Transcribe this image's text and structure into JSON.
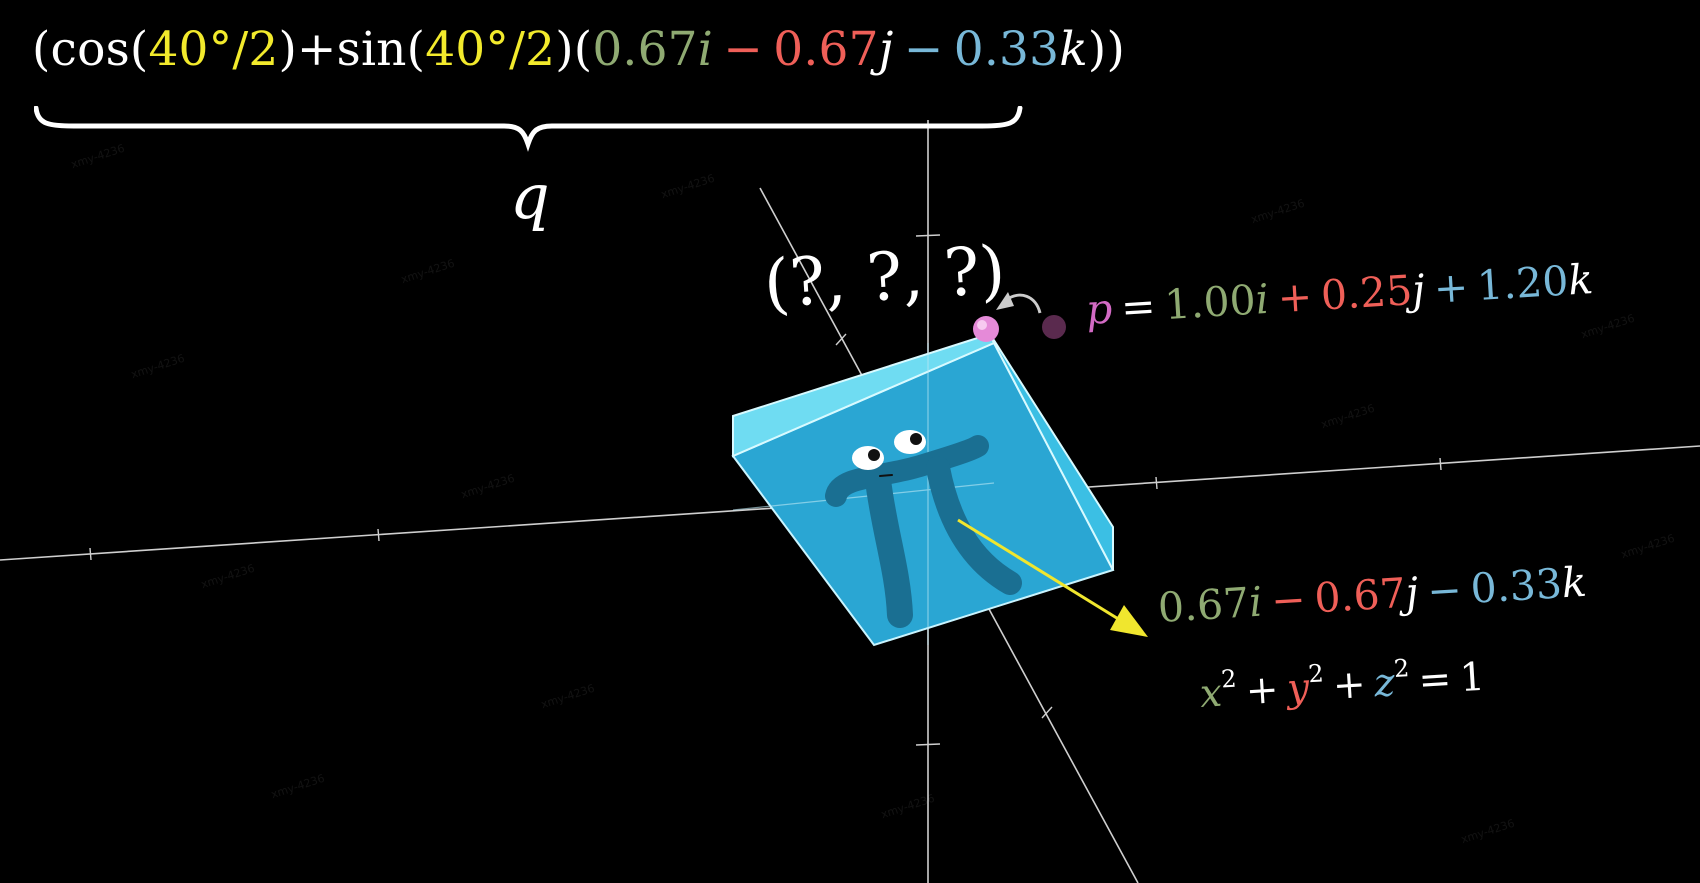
{
  "colors": {
    "background": "#000000",
    "text": "#ffffff",
    "yellow": "#f2ea2c",
    "green": "#8faa72",
    "red": "#ef5f58",
    "blue": "#78b8d8",
    "pink": "#d26ac4",
    "cube_front": "#2aa6d3",
    "cube_top": "#6fdcf2",
    "cube_side": "#3bbfe4",
    "character": "#1a6f92",
    "arrow": "#f0e62e",
    "axis": "#d8d8d8"
  },
  "quaternion": {
    "open_outer": "(",
    "cos": "cos",
    "angle_1": "40°/2",
    "plus": "+",
    "sin": "sin",
    "angle_2": "40°/2",
    "i_coef": "0.67",
    "i": "i",
    "minus_1": "−",
    "j_coef": "0.67",
    "j": "j",
    "minus_2": "−",
    "k_coef": "0.33",
    "k": "k",
    "close_outer": ")",
    "label": "q"
  },
  "rotated_point": {
    "text": "(?, ?, ?)"
  },
  "point_p": {
    "name": "p",
    "equals": "=",
    "x": "1.00",
    "i": "i",
    "plus_1": "+",
    "y": "0.25",
    "j": "j",
    "plus_2": "+",
    "z": "1.20",
    "k": "k"
  },
  "rotation_axis": {
    "x": "0.67",
    "i": "i",
    "minus_1": "−",
    "y": "0.67",
    "j": "j",
    "minus_2": "−",
    "z": "0.33",
    "k": "k"
  },
  "unit_sphere": {
    "x": "x",
    "y": "y",
    "z": "z",
    "exp": "2",
    "plus": "+",
    "equals": "=",
    "one": "1"
  },
  "watermark": "xmy-4236"
}
